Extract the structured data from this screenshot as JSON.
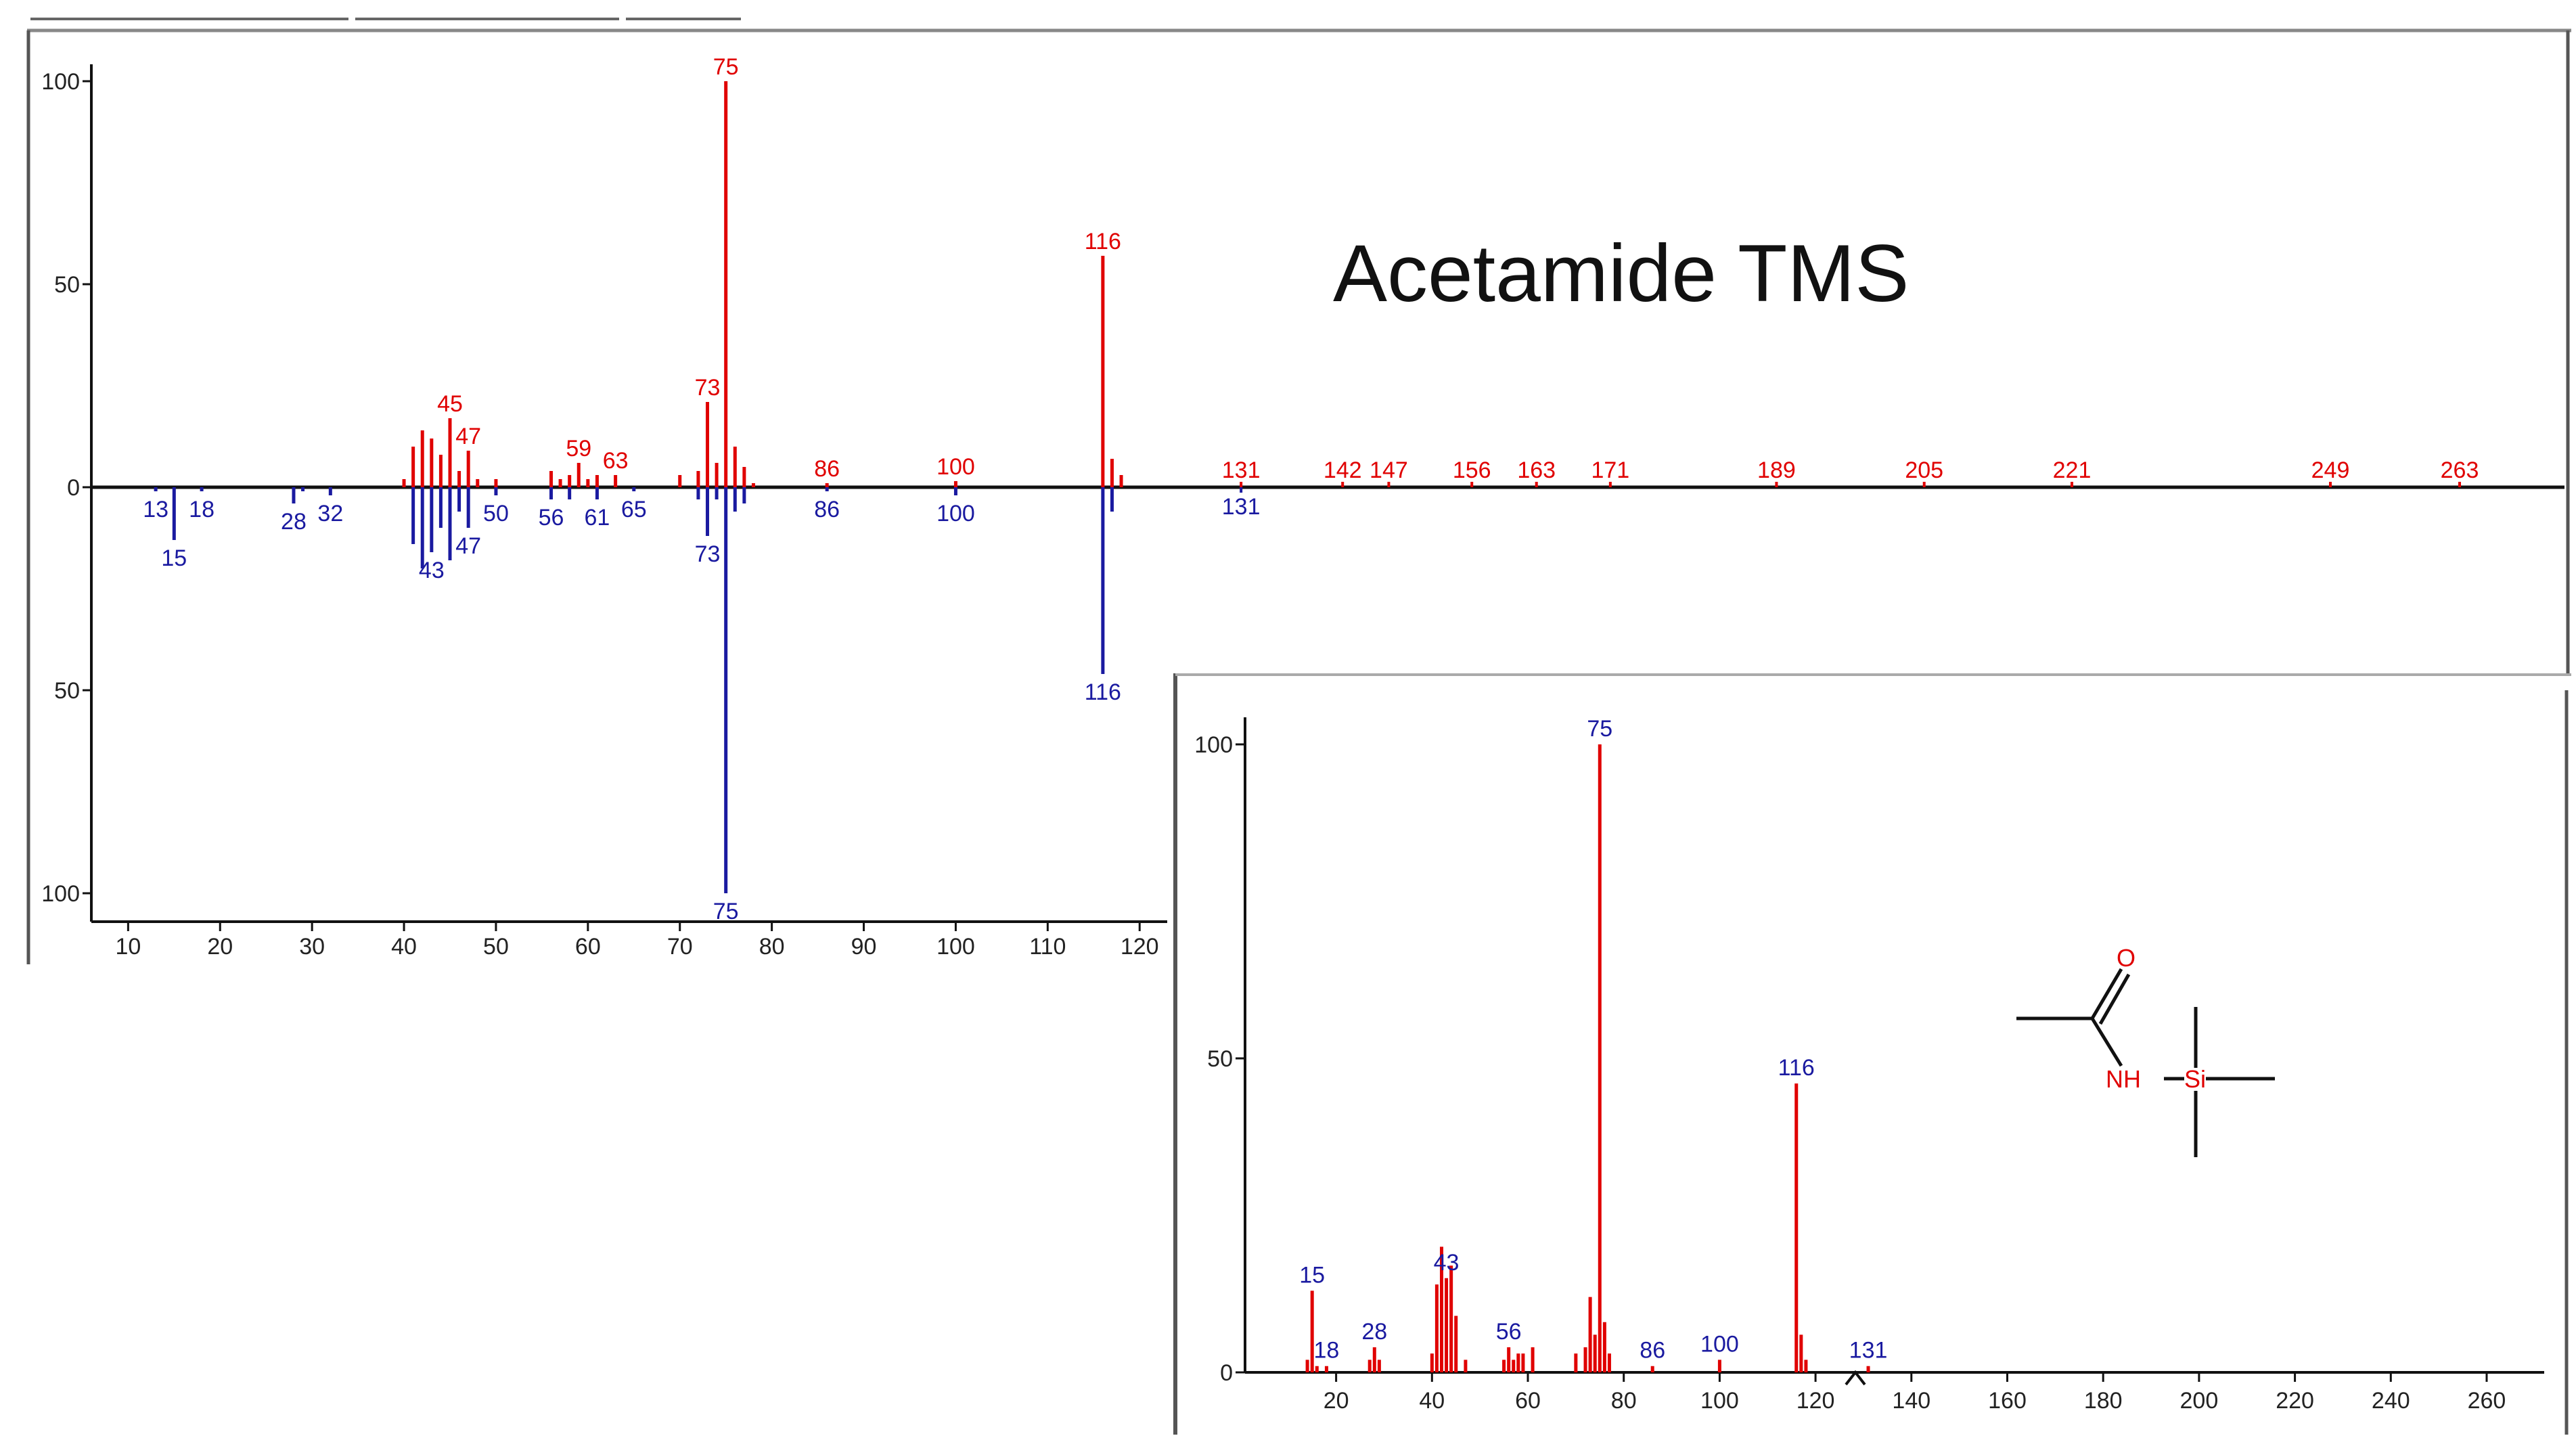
{
  "title": "Acetamide TMS",
  "colors": {
    "red": "#e00000",
    "blue": "#1a1aa0",
    "axis": "#111111",
    "frame": "#555555"
  },
  "molecule": {
    "name": "acetamide-tms-structure",
    "atoms": [
      "O",
      "NH",
      "Si"
    ]
  },
  "chart_data": [
    {
      "type": "bar",
      "name": "mirror-spectrum",
      "xlim": [
        6,
        123
      ],
      "ylim": [
        -100,
        100
      ],
      "xticks": [
        10,
        20,
        30,
        40,
        50,
        60,
        70,
        80,
        90,
        100,
        110,
        120
      ],
      "yticks": [
        {
          "v": 100,
          "label": "100"
        },
        {
          "v": 50,
          "label": "50"
        },
        {
          "v": 0,
          "label": "0"
        },
        {
          "v": -50,
          "label": "50"
        },
        {
          "v": -100,
          "label": "100"
        }
      ],
      "series": [
        {
          "color": "#e00000",
          "direction": "up",
          "peaks": [
            {
              "x": 40,
              "y": 2
            },
            {
              "x": 41,
              "y": 10
            },
            {
              "x": 42,
              "y": 14
            },
            {
              "x": 43,
              "y": 12
            },
            {
              "x": 44,
              "y": 8
            },
            {
              "x": 45,
              "y": 17,
              "label": "45"
            },
            {
              "x": 46,
              "y": 4
            },
            {
              "x": 47,
              "y": 9,
              "label": "47"
            },
            {
              "x": 48,
              "y": 2
            },
            {
              "x": 50,
              "y": 2
            },
            {
              "x": 56,
              "y": 4
            },
            {
              "x": 57,
              "y": 2
            },
            {
              "x": 58,
              "y": 3
            },
            {
              "x": 59,
              "y": 6,
              "label": "59"
            },
            {
              "x": 60,
              "y": 2
            },
            {
              "x": 61,
              "y": 3
            },
            {
              "x": 63,
              "y": 3,
              "label": "63"
            },
            {
              "x": 70,
              "y": 3
            },
            {
              "x": 72,
              "y": 4
            },
            {
              "x": 73,
              "y": 21,
              "label": "73"
            },
            {
              "x": 74,
              "y": 6
            },
            {
              "x": 75,
              "y": 100,
              "label": "75"
            },
            {
              "x": 76,
              "y": 10
            },
            {
              "x": 77,
              "y": 5
            },
            {
              "x": 78,
              "y": 1
            },
            {
              "x": 86,
              "y": 1,
              "label": "86"
            },
            {
              "x": 100,
              "y": 1.5,
              "label": "100"
            },
            {
              "x": 116,
              "y": 57,
              "label": "116"
            },
            {
              "x": 117,
              "y": 7
            },
            {
              "x": 118,
              "y": 3
            }
          ]
        },
        {
          "color": "#1a1aa0",
          "direction": "down",
          "peaks": [
            {
              "x": 13,
              "y": 1,
              "label": "13"
            },
            {
              "x": 15,
              "y": 13,
              "label": "15"
            },
            {
              "x": 18,
              "y": 1,
              "label": "18"
            },
            {
              "x": 28,
              "y": 4,
              "label": "28"
            },
            {
              "x": 29,
              "y": 1
            },
            {
              "x": 32,
              "y": 2,
              "label": "32"
            },
            {
              "x": 41,
              "y": 14
            },
            {
              "x": 42,
              "y": 20
            },
            {
              "x": 43,
              "y": 16,
              "label": "43"
            },
            {
              "x": 44,
              "y": 10
            },
            {
              "x": 45,
              "y": 18
            },
            {
              "x": 46,
              "y": 6
            },
            {
              "x": 47,
              "y": 10,
              "label": "47"
            },
            {
              "x": 50,
              "y": 2,
              "label": "50"
            },
            {
              "x": 56,
              "y": 3,
              "label": "56"
            },
            {
              "x": 58,
              "y": 3
            },
            {
              "x": 61,
              "y": 3,
              "label": "61"
            },
            {
              "x": 65,
              "y": 1,
              "label": "65"
            },
            {
              "x": 72,
              "y": 3
            },
            {
              "x": 73,
              "y": 12,
              "label": "73"
            },
            {
              "x": 74,
              "y": 3
            },
            {
              "x": 75,
              "y": 100,
              "label": "75"
            },
            {
              "x": 76,
              "y": 6
            },
            {
              "x": 77,
              "y": 4
            },
            {
              "x": 86,
              "y": 1,
              "label": "86"
            },
            {
              "x": 100,
              "y": 2,
              "label": "100"
            },
            {
              "x": 116,
              "y": 46,
              "label": "116"
            },
            {
              "x": 117,
              "y": 6
            }
          ]
        }
      ],
      "offscale_labels": [
        {
          "x": 131,
          "label": "131",
          "side": "up"
        },
        {
          "x": 131,
          "label": "131",
          "side": "down"
        },
        {
          "x": 142,
          "label": "142"
        },
        {
          "x": 147,
          "label": "147"
        },
        {
          "x": 156,
          "label": "156"
        },
        {
          "x": 163,
          "label": "163"
        },
        {
          "x": 171,
          "label": "171"
        },
        {
          "x": 189,
          "label": "189"
        },
        {
          "x": 205,
          "label": "205"
        },
        {
          "x": 221,
          "label": "221"
        },
        {
          "x": 249,
          "label": "249"
        },
        {
          "x": 263,
          "label": "263"
        }
      ]
    },
    {
      "type": "bar",
      "name": "reference-spectrum",
      "xlim": [
        1,
        272
      ],
      "ylim": [
        0,
        100
      ],
      "xticks": [
        20,
        40,
        60,
        80,
        100,
        120,
        140,
        160,
        180,
        200,
        220,
        240,
        260
      ],
      "yticks": [
        {
          "v": 100,
          "label": "100"
        },
        {
          "v": 50,
          "label": "50"
        },
        {
          "v": 0,
          "label": "0"
        }
      ],
      "series": [
        {
          "color": "#e00000",
          "peaks": [
            {
              "x": 14,
              "y": 2
            },
            {
              "x": 15,
              "y": 13,
              "label": "15"
            },
            {
              "x": 16,
              "y": 1
            },
            {
              "x": 18,
              "y": 1,
              "label": "18"
            },
            {
              "x": 27,
              "y": 2
            },
            {
              "x": 28,
              "y": 4,
              "label": "28"
            },
            {
              "x": 29,
              "y": 2
            },
            {
              "x": 40,
              "y": 3
            },
            {
              "x": 41,
              "y": 14
            },
            {
              "x": 42,
              "y": 20
            },
            {
              "x": 43,
              "y": 15,
              "label": "43"
            },
            {
              "x": 44,
              "y": 17
            },
            {
              "x": 45,
              "y": 9
            },
            {
              "x": 47,
              "y": 2
            },
            {
              "x": 55,
              "y": 2
            },
            {
              "x": 56,
              "y": 4,
              "label": "56"
            },
            {
              "x": 57,
              "y": 2
            },
            {
              "x": 58,
              "y": 3
            },
            {
              "x": 59,
              "y": 3
            },
            {
              "x": 61,
              "y": 4
            },
            {
              "x": 70,
              "y": 3
            },
            {
              "x": 72,
              "y": 4
            },
            {
              "x": 73,
              "y": 12
            },
            {
              "x": 74,
              "y": 6
            },
            {
              "x": 75,
              "y": 100,
              "label": "75"
            },
            {
              "x": 76,
              "y": 8
            },
            {
              "x": 77,
              "y": 3
            },
            {
              "x": 86,
              "y": 1,
              "label": "86"
            },
            {
              "x": 100,
              "y": 2,
              "label": "100"
            },
            {
              "x": 116,
              "y": 46,
              "label": "116"
            },
            {
              "x": 117,
              "y": 6
            },
            {
              "x": 118,
              "y": 2
            },
            {
              "x": 131,
              "y": 1,
              "label": "131"
            }
          ]
        }
      ]
    }
  ]
}
